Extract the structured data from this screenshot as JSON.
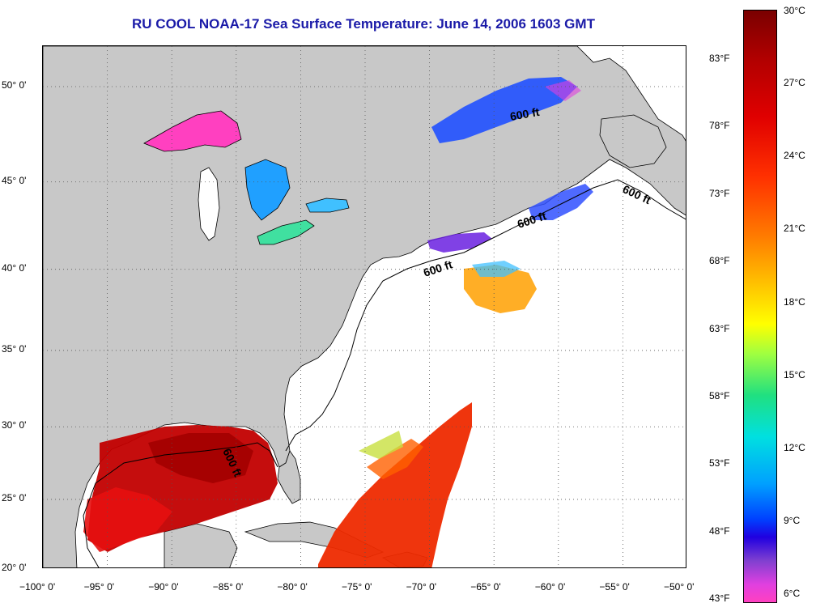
{
  "title": "RU COOL  NOAA-17  Sea Surface Temperature:  June 14, 2006 1603 GMT",
  "map": {
    "lat_labels": [
      {
        "text": "50° 0'",
        "lat": 50
      },
      {
        "text": "45° 0'",
        "lat": 45
      },
      {
        "text": "40° 0'",
        "lat": 40
      },
      {
        "text": "35° 0'",
        "lat": 35
      },
      {
        "text": "30° 0'",
        "lat": 30
      },
      {
        "text": "25° 0'",
        "lat": 25
      },
      {
        "text": "20° 0'",
        "lat": 20
      }
    ],
    "lon_labels": [
      {
        "text": "−100° 0'",
        "lon": -100
      },
      {
        "text": "−95° 0'",
        "lon": -95
      },
      {
        "text": "−90° 0'",
        "lon": -90
      },
      {
        "text": "−85° 0'",
        "lon": -85
      },
      {
        "text": "−80° 0'",
        "lon": -80
      },
      {
        "text": "−75° 0'",
        "lon": -75
      },
      {
        "text": "−70° 0'",
        "lon": -70
      },
      {
        "text": "−65° 0'",
        "lon": -65
      },
      {
        "text": "−60° 0'",
        "lon": -60
      },
      {
        "text": "−55° 0'",
        "lon": -55
      },
      {
        "text": "−50° 0'",
        "lon": -50
      }
    ],
    "isobath_labels": [
      "600 ft",
      "600 ft",
      "600 ft",
      "600 ft",
      "600 ft"
    ],
    "colors": {
      "land": "#c8c8c8",
      "ocean": "#ffffff",
      "gridline": "#555555"
    }
  },
  "colorbar": {
    "celsius": [
      "30°C",
      "27°C",
      "24°C",
      "21°C",
      "18°C",
      "15°C",
      "12°C",
      "9°C",
      "6°C"
    ],
    "fahrenheit": [
      "83°F",
      "78°F",
      "73°F",
      "68°F",
      "63°F",
      "58°F",
      "53°F",
      "48°F",
      "43°F"
    ]
  }
}
